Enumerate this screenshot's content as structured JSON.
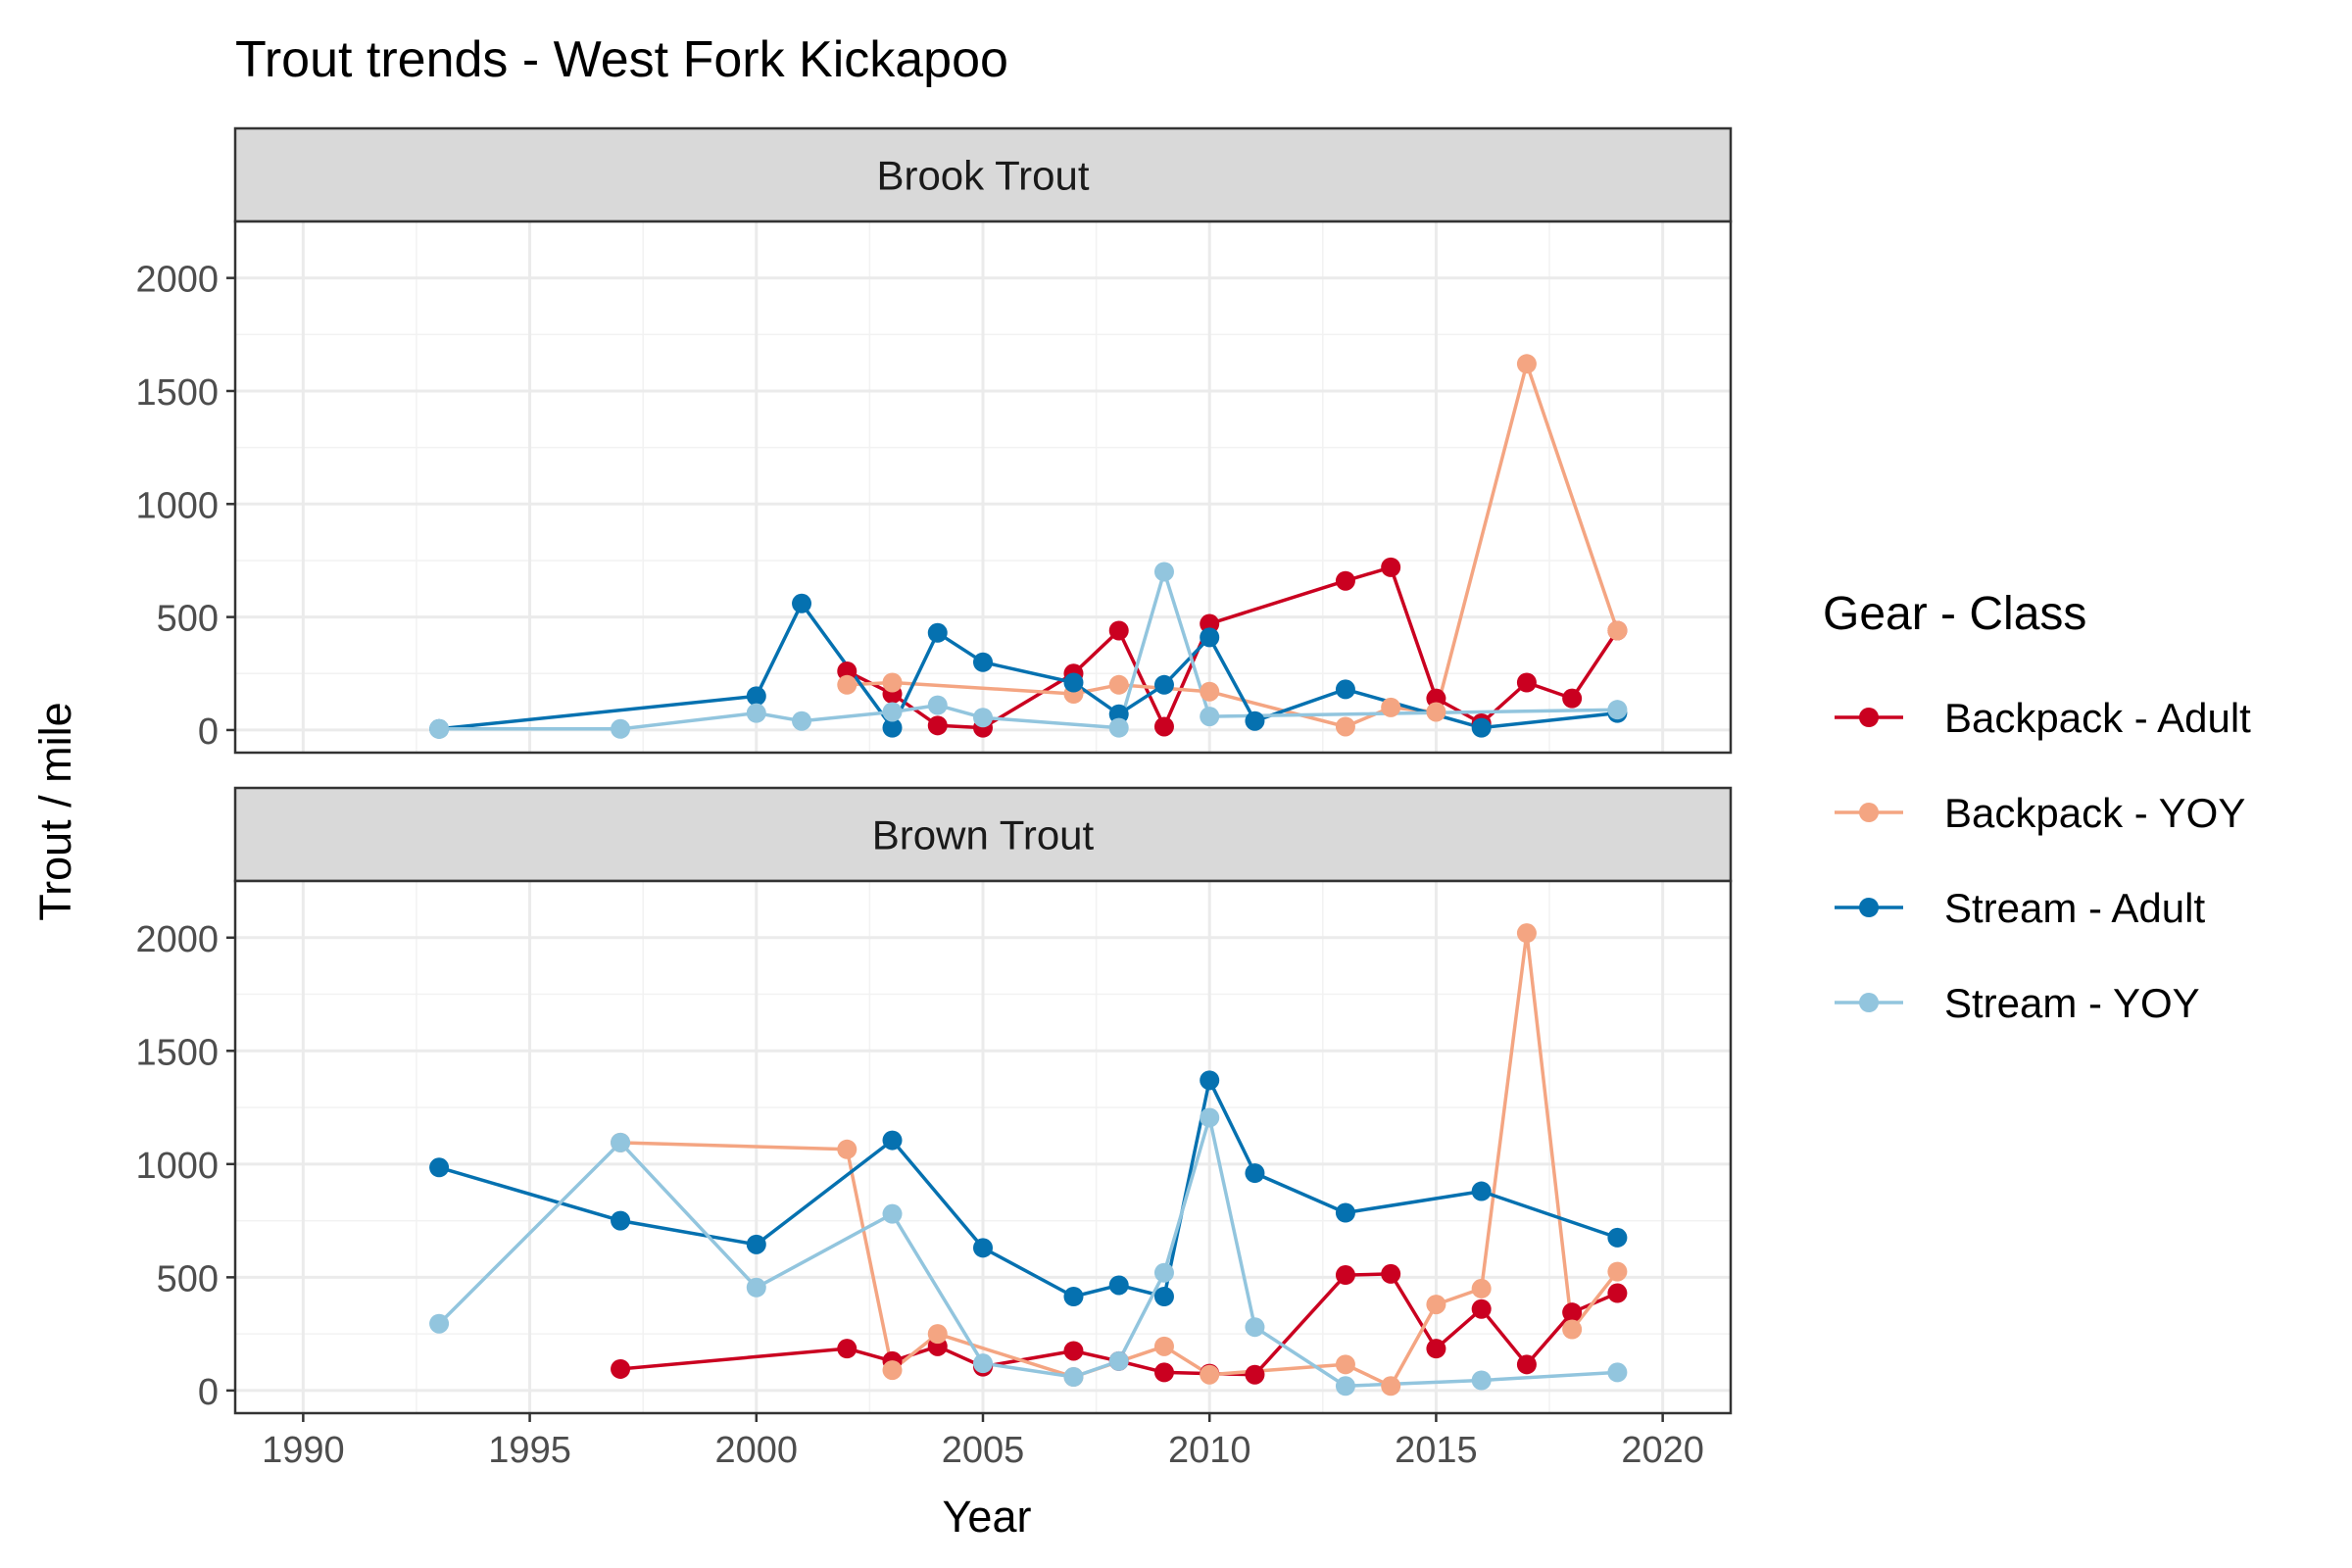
{
  "chart_data": {
    "type": "line",
    "title": "Trout trends - West Fork Kickapoo",
    "xlabel": "Year",
    "ylabel": "Trout / mile",
    "xlim": [
      1988.5,
      2021.5
    ],
    "ylim": [
      -100,
      2250
    ],
    "x_ticks": [
      1990,
      1995,
      2000,
      2005,
      2010,
      2015,
      2020
    ],
    "x_tick_labels": [
      "1990",
      "1995",
      "2000",
      "2005",
      "2010",
      "2015",
      "2020"
    ],
    "y_ticks": [
      0,
      500,
      1000,
      1500,
      2000
    ],
    "y_tick_labels": [
      "0",
      "500",
      "1000",
      "1500",
      "2000"
    ],
    "grid": true,
    "legend": {
      "title": "Gear - Class",
      "position": "right",
      "entries": [
        "Backpack - Adult",
        "Backpack - YOY",
        "Stream - Adult",
        "Stream - YOY"
      ]
    },
    "colors": {
      "Backpack - Adult": "#ca0020",
      "Backpack - YOY": "#f4a582",
      "Stream - Adult": "#0571b0",
      "Stream - YOY": "#92c5de"
    },
    "facets": [
      {
        "label": "Brook Trout",
        "series": [
          {
            "name": "Backpack - Adult",
            "x": [
              2002,
              2003,
              2004,
              2005,
              2007,
              2008,
              2009,
              2010,
              2013,
              2014,
              2015,
              2016,
              2017,
              2018,
              2019
            ],
            "y": [
              260,
              160,
              20,
              10,
              250,
              440,
              15,
              470,
              660,
              720,
              140,
              30,
              210,
              140,
              440
            ]
          },
          {
            "name": "Backpack - YOY",
            "x": [
              2002,
              2003,
              2007,
              2008,
              2010,
              2013,
              2014,
              2015,
              2017,
              2019
            ],
            "y": [
              200,
              210,
              160,
              200,
              170,
              15,
              100,
              80,
              1620,
              440
            ]
          },
          {
            "name": "Stream - Adult",
            "x": [
              1993,
              2000,
              2001,
              2003,
              2004,
              2005,
              2007,
              2008,
              2009,
              2010,
              2011,
              2013,
              2016,
              2019
            ],
            "y": [
              5,
              150,
              560,
              10,
              430,
              300,
              210,
              70,
              200,
              410,
              40,
              180,
              10,
              75
            ]
          },
          {
            "name": "Stream - YOY",
            "x": [
              1993,
              1997,
              2000,
              2001,
              2003,
              2004,
              2005,
              2008,
              2009,
              2010,
              2019
            ],
            "y": [
              5,
              5,
              75,
              40,
              80,
              110,
              55,
              10,
              700,
              60,
              90
            ]
          }
        ]
      },
      {
        "label": "Brown Trout",
        "series": [
          {
            "name": "Backpack - Adult",
            "x": [
              1997,
              2002,
              2003,
              2004,
              2005,
              2007,
              2008,
              2009,
              2010,
              2011,
              2013,
              2014,
              2015,
              2016,
              2017,
              2018,
              2019
            ],
            "y": [
              95,
              185,
              130,
              195,
              105,
              175,
              130,
              80,
              75,
              70,
              510,
              515,
              185,
              360,
              115,
              345,
              430
            ]
          },
          {
            "name": "Backpack - YOY",
            "x": [
              1997,
              2002,
              2003,
              2004,
              2007,
              2009,
              2010,
              2013,
              2014,
              2015,
              2016,
              2017,
              2018,
              2019
            ],
            "y": [
              1095,
              1065,
              90,
              250,
              60,
              195,
              70,
              115,
              20,
              380,
              450,
              2020,
              270,
              525
            ]
          },
          {
            "name": "Stream - Adult",
            "x": [
              1993,
              1997,
              2000,
              2003,
              2005,
              2007,
              2008,
              2009,
              2010,
              2011,
              2013,
              2016,
              2019
            ],
            "y": [
              985,
              750,
              645,
              1105,
              630,
              415,
              465,
              415,
              1370,
              960,
              785,
              880,
              675
            ]
          },
          {
            "name": "Stream - YOY",
            "x": [
              1993,
              1997,
              2000,
              2003,
              2005,
              2007,
              2008,
              2009,
              2010,
              2011,
              2013,
              2016,
              2019
            ],
            "y": [
              295,
              1095,
              455,
              780,
              120,
              60,
              130,
              520,
              1205,
              280,
              20,
              45,
              80
            ]
          }
        ]
      }
    ]
  }
}
